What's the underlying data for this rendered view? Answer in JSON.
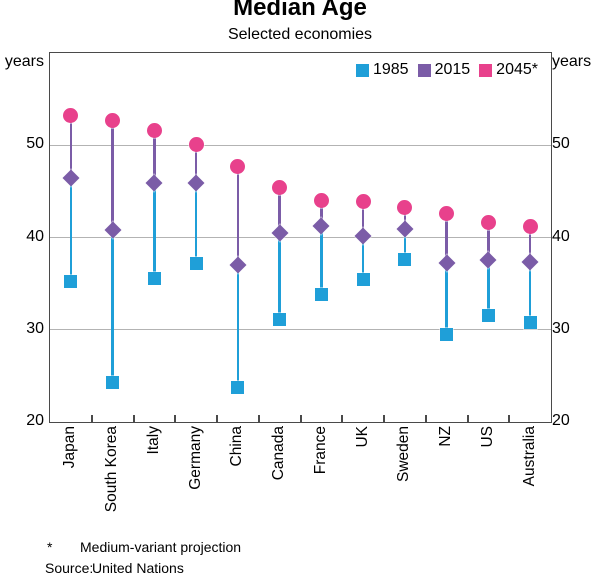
{
  "title": "Median Age",
  "subtitle": "Selected economies",
  "unit_label_left": "years",
  "unit_label_right": "years",
  "legend": [
    {
      "label": "1985",
      "color": "#1f9fd8"
    },
    {
      "label": "2015",
      "color": "#7b5ca7"
    },
    {
      "label": "2045*",
      "color": "#e8418c"
    }
  ],
  "footnote": {
    "symbol": "*",
    "text": "Medium-variant projection",
    "source_label": "Source:",
    "source_text": "United Nations"
  },
  "chart_data": {
    "type": "scatter",
    "subtype": "dot-range-lollipop",
    "title": "Median Age",
    "subtitle": "Selected economies",
    "ylabel": "years",
    "categories": [
      "Japan",
      "South Korea",
      "Italy",
      "Germany",
      "China",
      "Canada",
      "France",
      "UK",
      "Sweden",
      "NZ",
      "US",
      "Australia"
    ],
    "series": [
      {
        "name": "1985",
        "marker": "square",
        "color": "#1f9fd8",
        "values": [
          35.2,
          24.3,
          35.6,
          37.2,
          23.7,
          31.1,
          33.8,
          35.4,
          37.6,
          29.5,
          31.5,
          30.8
        ]
      },
      {
        "name": "2015",
        "marker": "diamond",
        "color": "#7b5ca7",
        "values": [
          46.4,
          40.8,
          45.9,
          45.9,
          37.0,
          40.5,
          41.2,
          40.2,
          40.9,
          37.2,
          37.6,
          37.3
        ]
      },
      {
        "name": "2045*",
        "marker": "circle",
        "color": "#e8418c",
        "values": [
          53.2,
          52.7,
          51.6,
          50.1,
          47.7,
          45.4,
          44.0,
          43.9,
          43.3,
          42.6,
          41.6,
          41.2
        ]
      }
    ],
    "connector_colors": {
      "1985_to_2015": "#1f9fd8",
      "2015_to_2045": "#7b5ca7"
    },
    "ylim": [
      20,
      60
    ],
    "yticks": [
      20,
      30,
      40,
      50
    ],
    "gridlines": [
      30,
      40,
      50
    ],
    "grid": true,
    "legend_position": "top-right",
    "axis_color": "#4a4a4a",
    "grid_color": "#b3b3b3"
  }
}
